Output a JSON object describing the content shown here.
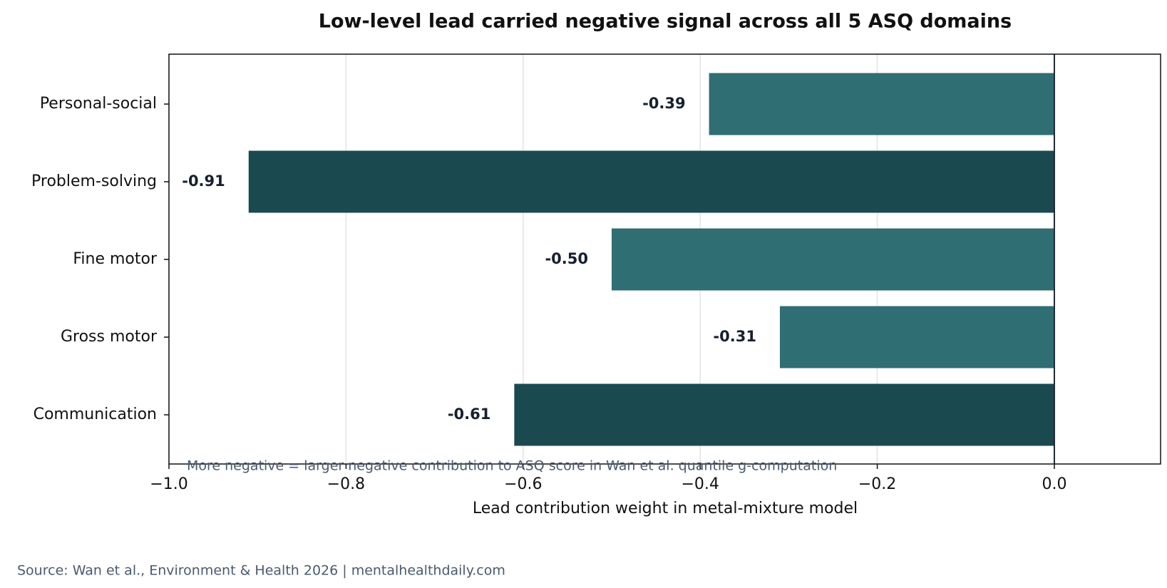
{
  "chart_data": {
    "type": "hbar",
    "title": "Low-level lead carried negative signal across all 5 ASQ domains",
    "categories": [
      "Personal-social",
      "Problem-solving",
      "Fine motor",
      "Gross motor",
      "Communication"
    ],
    "values": [
      -0.39,
      -0.91,
      -0.5,
      -0.31,
      -0.61
    ],
    "value_labels": [
      "-0.39",
      "-0.91",
      "-0.50",
      "-0.31",
      "-0.61"
    ],
    "colors": [
      "#2f6e73",
      "#1a4a4f",
      "#2f6e73",
      "#2f6e73",
      "#1a4a4f"
    ],
    "xlim": [
      -1.0,
      0.12
    ],
    "xticks": [
      {
        "value": -1.0,
        "label": "−1.0"
      },
      {
        "value": -0.8,
        "label": "−0.8"
      },
      {
        "value": -0.6,
        "label": "−0.6"
      },
      {
        "value": -0.4,
        "label": "−0.4"
      },
      {
        "value": -0.2,
        "label": "−0.2"
      },
      {
        "value": 0.0,
        "label": "0.0"
      }
    ],
    "xlabel": "Lead contribution weight in metal-mixture model",
    "annotation": "More negative = larger negative contribution to ASQ score in Wan et al. quantile g-computation",
    "source": "Source: Wan et al., Environment & Health 2026 | mentalhealthdaily.com",
    "grid": true
  }
}
